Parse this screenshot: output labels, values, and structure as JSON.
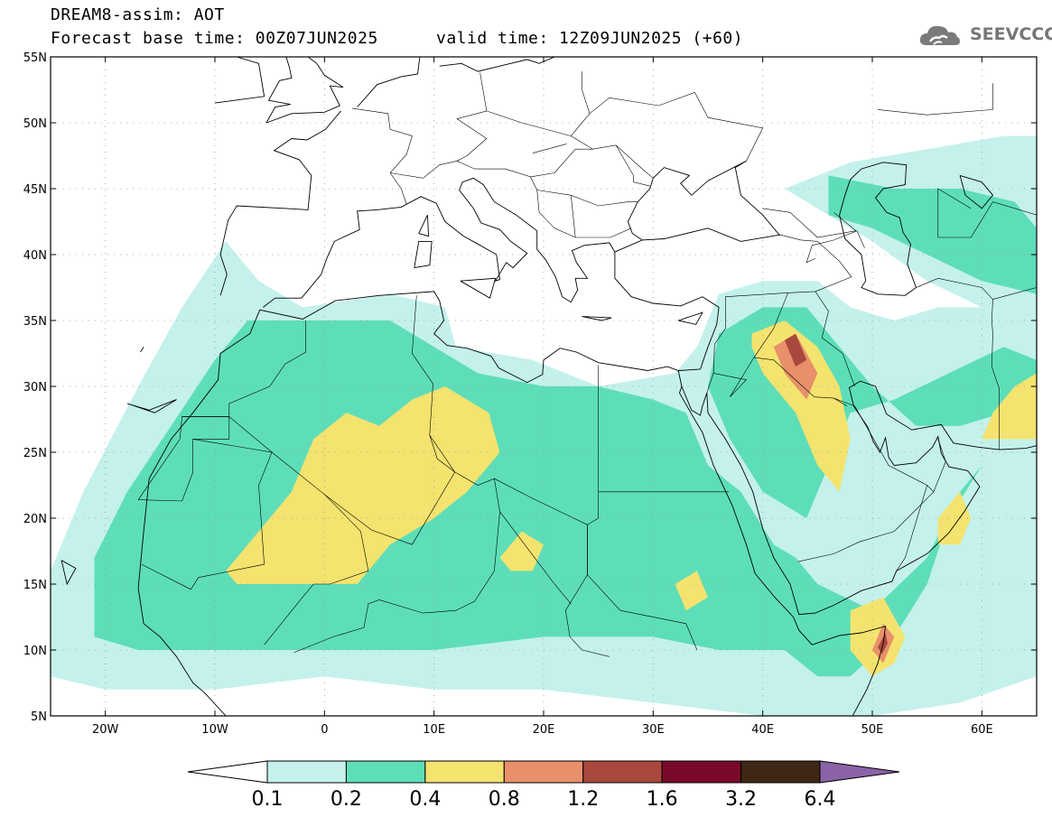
{
  "header": {
    "title": "DREAM8-assim: AOT",
    "base_time": "Forecast base time: 00Z07JUN2025",
    "valid_time": "valid time: 12Z09JUN2025 (+60)"
  },
  "logo": {
    "name": "cloud-logo-icon",
    "text": "SEEVCCC",
    "color": "#777777"
  },
  "map": {
    "projection": "lat-lon",
    "lon_range": [
      -25,
      65
    ],
    "lat_range": [
      5,
      55
    ],
    "grid": "dotted",
    "lon_ticks": [
      {
        "value": -20,
        "label": "20W"
      },
      {
        "value": -10,
        "label": "10W"
      },
      {
        "value": 0,
        "label": "0"
      },
      {
        "value": 10,
        "label": "10E"
      },
      {
        "value": 20,
        "label": "20E"
      },
      {
        "value": 30,
        "label": "30E"
      },
      {
        "value": 40,
        "label": "40E"
      },
      {
        "value": 50,
        "label": "50E"
      },
      {
        "value": 60,
        "label": "60E"
      }
    ],
    "lat_ticks": [
      {
        "value": 55,
        "label": "55N"
      },
      {
        "value": 50,
        "label": "50N"
      },
      {
        "value": 45,
        "label": "45N"
      },
      {
        "value": 40,
        "label": "40N"
      },
      {
        "value": 35,
        "label": "35N"
      },
      {
        "value": 30,
        "label": "30N"
      },
      {
        "value": 25,
        "label": "25N"
      },
      {
        "value": 20,
        "label": "20N"
      },
      {
        "value": 15,
        "label": "15N"
      },
      {
        "value": 10,
        "label": "10N"
      },
      {
        "value": 5,
        "label": "5N"
      }
    ]
  },
  "colorbar": {
    "labels": [
      "0.1",
      "0.2",
      "0.4",
      "0.8",
      "1.2",
      "1.6",
      "3.2",
      "6.4"
    ],
    "colors": [
      "#c4f1eb",
      "#5ddeb9",
      "#f4e36e",
      "#e8906a",
      "#a9483c",
      "#7a0a2a",
      "#3e2815"
    ],
    "extend_low_color": "#ffffff",
    "extend_high_color": "#8a63a6"
  },
  "chart_data": {
    "type": "heatmap",
    "variable": "AOT",
    "levels": [
      0.1,
      0.2,
      0.4,
      0.8,
      1.2,
      1.6,
      3.2,
      6.4
    ],
    "regions": [
      {
        "name": "",
        "level": 0.1,
        "polygon": [
          [
            -25,
            8
          ],
          [
            -25,
            16
          ],
          [
            -22,
            22
          ],
          [
            -17,
            30
          ],
          [
            -13,
            36
          ],
          [
            -9,
            41
          ],
          [
            -6,
            38
          ],
          [
            -2,
            36
          ],
          [
            6,
            37
          ],
          [
            11,
            36
          ],
          [
            12,
            33
          ],
          [
            19,
            32
          ],
          [
            22,
            31
          ],
          [
            25,
            30
          ],
          [
            32,
            31
          ],
          [
            34,
            33
          ],
          [
            36,
            37
          ],
          [
            40,
            38
          ],
          [
            45,
            38
          ],
          [
            48,
            36
          ],
          [
            52,
            35
          ],
          [
            56,
            36
          ],
          [
            60,
            36
          ],
          [
            65,
            35
          ],
          [
            65,
            8
          ],
          [
            58,
            6
          ],
          [
            50,
            5
          ],
          [
            40,
            5
          ],
          [
            30,
            6
          ],
          [
            20,
            7
          ],
          [
            10,
            7
          ],
          [
            0,
            8
          ],
          [
            -10,
            7
          ],
          [
            -20,
            7
          ]
        ]
      },
      {
        "name": "",
        "level": 0.1,
        "polygon": [
          [
            42,
            45
          ],
          [
            48,
            47
          ],
          [
            55,
            48
          ],
          [
            62,
            49
          ],
          [
            65,
            49
          ],
          [
            65,
            35
          ],
          [
            60,
            36
          ],
          [
            55,
            38
          ],
          [
            50,
            41
          ],
          [
            46,
            43
          ]
        ]
      },
      {
        "name": "",
        "level": 0.2,
        "polygon": [
          [
            -21,
            11
          ],
          [
            -21,
            17
          ],
          [
            -18,
            22
          ],
          [
            -14,
            27
          ],
          [
            -10,
            32
          ],
          [
            -7,
            35
          ],
          [
            -1,
            35
          ],
          [
            6,
            35
          ],
          [
            10,
            33
          ],
          [
            14,
            31
          ],
          [
            20,
            30
          ],
          [
            25,
            30
          ],
          [
            30,
            29
          ],
          [
            33,
            28
          ],
          [
            35,
            24
          ],
          [
            38,
            22
          ],
          [
            41,
            18
          ],
          [
            43,
            17
          ],
          [
            45,
            15
          ],
          [
            50,
            13
          ],
          [
            55,
            17
          ],
          [
            58,
            22
          ],
          [
            60,
            24
          ],
          [
            57,
            20
          ],
          [
            55,
            15
          ],
          [
            52,
            11
          ],
          [
            48,
            8
          ],
          [
            45,
            8
          ],
          [
            42,
            10
          ],
          [
            36,
            10
          ],
          [
            30,
            11
          ],
          [
            20,
            11
          ],
          [
            10,
            10
          ],
          [
            0,
            10
          ],
          [
            -10,
            10
          ],
          [
            -17,
            10
          ]
        ]
      },
      {
        "name": "",
        "level": 0.2,
        "polygon": [
          [
            36,
            34
          ],
          [
            40,
            36
          ],
          [
            44,
            36
          ],
          [
            47,
            33
          ],
          [
            50,
            30
          ],
          [
            54,
            27
          ],
          [
            58,
            27
          ],
          [
            62,
            28
          ],
          [
            65,
            28
          ],
          [
            65,
            32
          ],
          [
            62,
            33
          ],
          [
            57,
            31
          ],
          [
            52,
            29
          ],
          [
            48,
            28
          ],
          [
            46,
            24
          ],
          [
            44,
            20
          ],
          [
            40,
            22
          ],
          [
            37,
            26
          ],
          [
            35,
            30
          ]
        ]
      },
      {
        "name": "",
        "level": 0.2,
        "polygon": [
          [
            46,
            46
          ],
          [
            52,
            45
          ],
          [
            58,
            45
          ],
          [
            63,
            44
          ],
          [
            65,
            42
          ],
          [
            65,
            37
          ],
          [
            60,
            38
          ],
          [
            55,
            40
          ],
          [
            50,
            42
          ],
          [
            46,
            43
          ]
        ]
      },
      {
        "name": "",
        "level": 0.2,
        "polygon": [
          [
            32,
            20
          ],
          [
            36,
            21
          ],
          [
            36,
            16
          ],
          [
            34,
            13
          ],
          [
            31,
            13
          ],
          [
            29,
            16
          ],
          [
            30,
            19
          ]
        ]
      },
      {
        "name": "",
        "level": 0.4,
        "polygon": [
          [
            -9,
            16
          ],
          [
            -6,
            19
          ],
          [
            -3,
            22
          ],
          [
            -1,
            26
          ],
          [
            2,
            28
          ],
          [
            5,
            27
          ],
          [
            8,
            29
          ],
          [
            11,
            30
          ],
          [
            15,
            28
          ],
          [
            16,
            25
          ],
          [
            13,
            22
          ],
          [
            10,
            20
          ],
          [
            6,
            18
          ],
          [
            3,
            15
          ],
          [
            -2,
            15
          ],
          [
            -5,
            15
          ],
          [
            -8,
            15
          ]
        ]
      },
      {
        "name": "",
        "level": 0.4,
        "polygon": [
          [
            39,
            34
          ],
          [
            42,
            35
          ],
          [
            45,
            33
          ],
          [
            47,
            30
          ],
          [
            48,
            26
          ],
          [
            47,
            22
          ],
          [
            45,
            24
          ],
          [
            43,
            28
          ],
          [
            40,
            31
          ],
          [
            39,
            33
          ]
        ]
      },
      {
        "name": "",
        "level": 0.4,
        "polygon": [
          [
            48,
            13
          ],
          [
            51,
            14
          ],
          [
            53,
            11
          ],
          [
            52,
            9
          ],
          [
            50,
            8
          ],
          [
            48,
            10
          ]
        ]
      },
      {
        "name": "",
        "level": 0.4,
        "polygon": [
          [
            32,
            15
          ],
          [
            34,
            16
          ],
          [
            35,
            14
          ],
          [
            33,
            13
          ]
        ]
      },
      {
        "name": "",
        "level": 0.4,
        "polygon": [
          [
            16,
            17
          ],
          [
            18,
            19
          ],
          [
            20,
            18
          ],
          [
            19,
            16
          ],
          [
            17,
            16
          ]
        ]
      },
      {
        "name": "",
        "level": 0.4,
        "polygon": [
          [
            56,
            20
          ],
          [
            58,
            22
          ],
          [
            59,
            20
          ],
          [
            58,
            18
          ],
          [
            56,
            18
          ]
        ]
      },
      {
        "name": "",
        "level": 0.4,
        "polygon": [
          [
            61,
            28
          ],
          [
            63,
            30
          ],
          [
            65,
            31
          ],
          [
            65,
            26
          ],
          [
            62,
            26
          ],
          [
            60,
            26
          ]
        ]
      },
      {
        "name": "",
        "level": 0.8,
        "polygon": [
          [
            41,
            33
          ],
          [
            43,
            34
          ],
          [
            45,
            31
          ],
          [
            44,
            29
          ],
          [
            42,
            31
          ]
        ]
      },
      {
        "name": "",
        "level": 0.8,
        "polygon": [
          [
            50,
            10
          ],
          [
            51,
            12
          ],
          [
            52,
            11
          ],
          [
            51,
            9
          ]
        ]
      },
      {
        "name": "",
        "level": 1.2,
        "polygon": [
          [
            42,
            33.5
          ],
          [
            43,
            34
          ],
          [
            44,
            32
          ],
          [
            43,
            31.5
          ]
        ]
      },
      {
        "name": "",
        "level": 1.2,
        "polygon": [
          [
            50.5,
            10.2
          ],
          [
            51.2,
            11.3
          ],
          [
            51.4,
            10.5
          ],
          [
            50.9,
            9.7
          ]
        ]
      }
    ]
  }
}
